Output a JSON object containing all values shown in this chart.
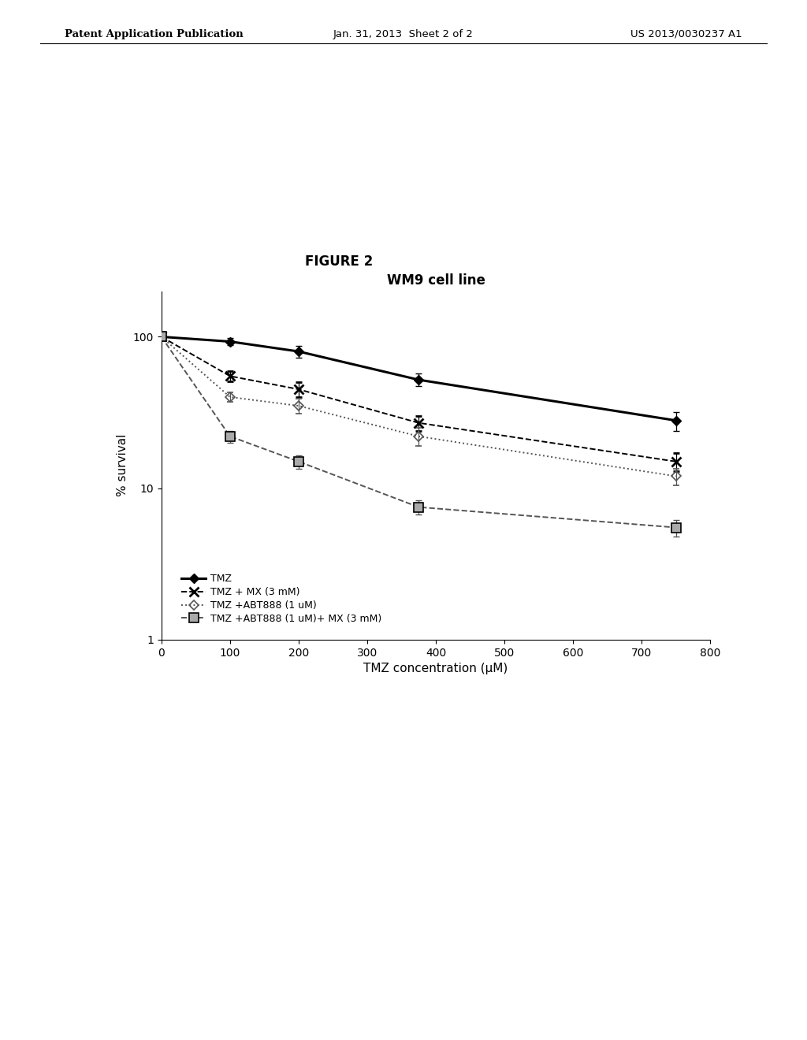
{
  "title": "WM9 cell line",
  "figure_label": "FIGURE 2",
  "xlabel": "TMZ concentration (μM)",
  "ylabel": "% survival",
  "header_left": "Patent Application Publication",
  "header_center": "Jan. 31, 2013  Sheet 2 of 2",
  "header_right": "US 2013/0030237 A1",
  "xlim": [
    0,
    800
  ],
  "ylim_log": [
    1,
    200
  ],
  "xticks": [
    0,
    100,
    200,
    300,
    400,
    500,
    600,
    700,
    800
  ],
  "yticks_log": [
    1,
    10,
    100
  ],
  "series": [
    {
      "label": "TMZ",
      "x": [
        0,
        100,
        200,
        375,
        750
      ],
      "y": [
        100,
        93,
        80,
        52,
        28
      ],
      "yerr": [
        2,
        5,
        7,
        5,
        4
      ],
      "color": "#000000",
      "linestyle": "solid",
      "linewidth": 2.2,
      "marker": "D",
      "markersize": 6,
      "markerfacecolor": "#000000",
      "markeredgecolor": "#000000",
      "markeredgewidth": 1.0
    },
    {
      "label": "TMZ + MX (3 mM)",
      "x": [
        0,
        100,
        200,
        375,
        750
      ],
      "y": [
        100,
        55,
        45,
        27,
        15
      ],
      "yerr": [
        2,
        4,
        5,
        3,
        2
      ],
      "color": "#000000",
      "linestyle": "dashed",
      "linewidth": 1.4,
      "marker": "x",
      "markersize": 9,
      "markerfacecolor": "#000000",
      "markeredgecolor": "#000000",
      "markeredgewidth": 2.0
    },
    {
      "label": "TMZ +ABT888 (1 uM)",
      "x": [
        0,
        100,
        200,
        375,
        750
      ],
      "y": [
        100,
        40,
        35,
        22,
        12
      ],
      "yerr": [
        2,
        3,
        4,
        3,
        1.5
      ],
      "color": "#555555",
      "linestyle": "dotted",
      "linewidth": 1.4,
      "marker": "D",
      "markersize": 6,
      "markerfacecolor": "none",
      "markeredgecolor": "#555555",
      "markeredgewidth": 1.2
    },
    {
      "label": "TMZ +ABT888 (1 uM)+ MX (3 mM)",
      "x": [
        0,
        100,
        200,
        375,
        750
      ],
      "y": [
        100,
        22,
        15,
        7.5,
        5.5
      ],
      "yerr": [
        2,
        2,
        1.5,
        0.8,
        0.7
      ],
      "color": "#555555",
      "linestyle": "dashed",
      "linewidth": 1.4,
      "marker": "s",
      "markersize": 8,
      "markerfacecolor": "#888888",
      "markeredgecolor": "#000000",
      "markeredgewidth": 1.2,
      "hatch": true
    }
  ]
}
